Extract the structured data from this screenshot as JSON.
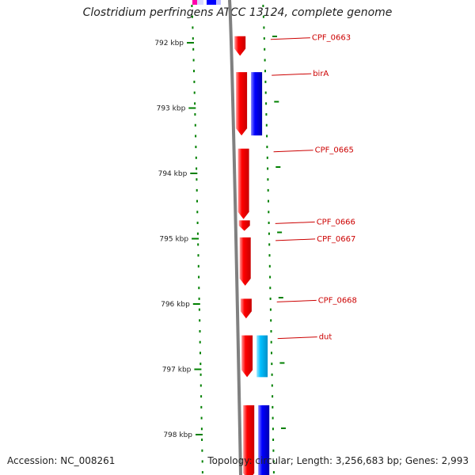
{
  "title": "Clostridium perfringens ATCC 13124, complete genome",
  "accession_text": "Accession: NC_008261",
  "topology_text": "Topology: circular; Length: 3,256,683 bp; Genes: 2,993",
  "colors": {
    "forward_gene": "#ff0000",
    "reverse_gene": "#0000ff",
    "reverse_gene_alt": "#00bfff",
    "label": "#cc0000",
    "ticks": "#008000",
    "backbone": "#808080"
  },
  "ruler": [
    {
      "kbp": 792,
      "label": "792 kbp"
    },
    {
      "kbp": 793,
      "label": "793 kbp"
    },
    {
      "kbp": 794,
      "label": "794 kbp"
    },
    {
      "kbp": 795,
      "label": "795 kbp"
    },
    {
      "kbp": 796,
      "label": "796 kbp"
    },
    {
      "kbp": 797,
      "label": "797 kbp"
    },
    {
      "kbp": 798,
      "label": "798 kbp"
    }
  ],
  "genes": [
    {
      "name": "CPF_0663",
      "strand": "forward",
      "start_kbp": 791.9,
      "end_kbp": 792.2,
      "labeled": true
    },
    {
      "name": "birA",
      "strand": "forward",
      "start_kbp": 792.45,
      "end_kbp": 793.42,
      "labeled": true
    },
    {
      "name": "",
      "strand": "reverse",
      "start_kbp": 792.45,
      "end_kbp": 793.42,
      "labeled": false
    },
    {
      "name": "CPF_0665",
      "strand": "forward",
      "start_kbp": 793.62,
      "end_kbp": 794.7,
      "labeled": true
    },
    {
      "name": "CPF_0666",
      "strand": "forward",
      "start_kbp": 794.72,
      "end_kbp": 794.88,
      "labeled": true
    },
    {
      "name": "CPF_0667",
      "strand": "forward",
      "start_kbp": 794.98,
      "end_kbp": 795.72,
      "labeled": true
    },
    {
      "name": "CPF_0668",
      "strand": "forward",
      "start_kbp": 795.92,
      "end_kbp": 796.22,
      "labeled": true
    },
    {
      "name": "dut",
      "strand": "forward",
      "start_kbp": 796.48,
      "end_kbp": 797.12,
      "labeled": true
    },
    {
      "name": "",
      "strand": "reverse_alt",
      "start_kbp": 796.48,
      "end_kbp": 797.12,
      "labeled": false
    },
    {
      "name": "",
      "strand": "forward",
      "start_kbp": 797.55,
      "end_kbp": 798.7,
      "labeled": false
    },
    {
      "name": "",
      "strand": "reverse",
      "start_kbp": 797.55,
      "end_kbp": 798.7,
      "labeled": false
    }
  ]
}
